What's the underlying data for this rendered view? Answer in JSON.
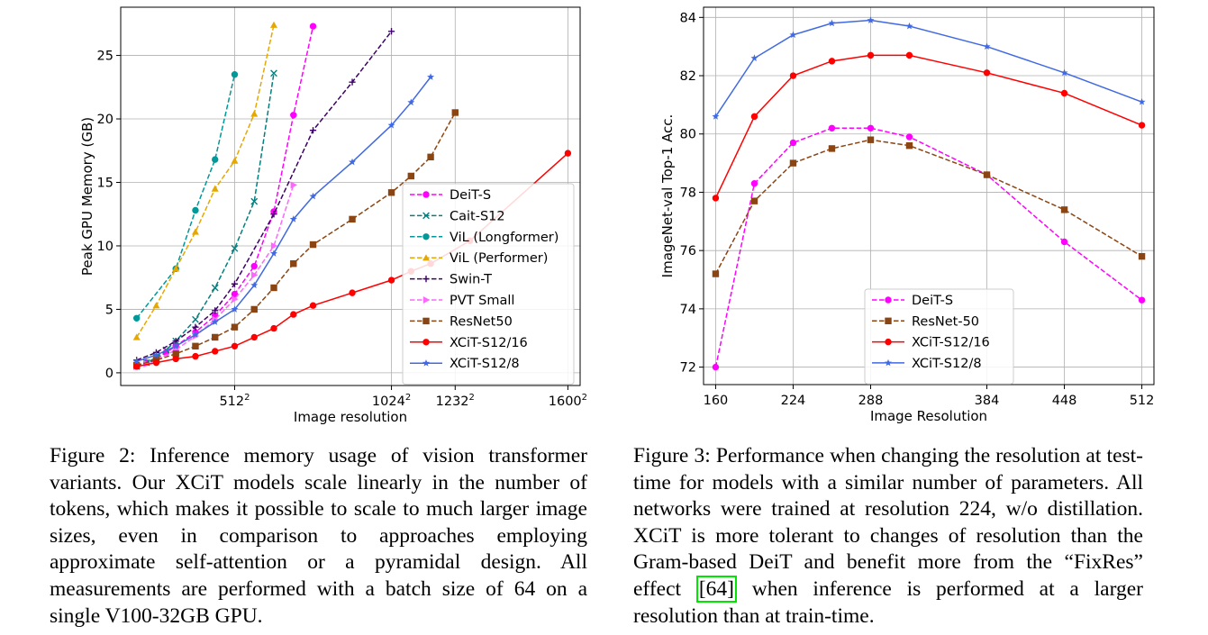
{
  "chart_data": [
    {
      "type": "line",
      "title": "",
      "xlabel": "Image resolution",
      "ylabel": "Peak GPU Memory (GB)",
      "xlim": [
        140,
        1640
      ],
      "ylim": [
        -1,
        28.8
      ],
      "xticks": [
        {
          "value": 512,
          "base": "512",
          "exp": "2"
        },
        {
          "value": 1024,
          "base": "1024",
          "exp": "2"
        },
        {
          "value": 1232,
          "base": "1232",
          "exp": "2"
        },
        {
          "value": 1600,
          "base": "1600",
          "exp": "2"
        }
      ],
      "yticks": [
        0,
        5,
        10,
        15,
        20,
        25
      ],
      "grid": true,
      "legend_position": "lower-right",
      "series": [
        {
          "name": "DeiT-S",
          "color": "#ff00ff",
          "dash": "dashed",
          "marker": "circle",
          "x": [
            192,
            224,
            256,
            288,
            320,
            384,
            448,
            512,
            576,
            640,
            704,
            768
          ],
          "y": [
            0.5,
            0.8,
            1.1,
            1.6,
            2.1,
            3.2,
            4.5,
            6.2,
            8.4,
            12.7,
            20.3,
            27.3
          ]
        },
        {
          "name": "Cait-S12",
          "color": "#008080",
          "dash": "dashed",
          "marker": "x",
          "x": [
            192,
            224,
            256,
            288,
            320,
            384,
            448,
            512,
            576,
            640
          ],
          "y": [
            0.5,
            0.8,
            1.2,
            1.8,
            2.5,
            4.2,
            6.7,
            9.8,
            13.5,
            23.6
          ]
        },
        {
          "name": "ViL (Longformer)",
          "color": "#009999",
          "dash": "dashed",
          "marker": "circle",
          "x": [
            192,
            320,
            384,
            448,
            512
          ],
          "y": [
            4.3,
            8.2,
            12.8,
            16.8,
            23.5
          ]
        },
        {
          "name": "ViL (Performer)",
          "color": "#e6a800",
          "dash": "dashed",
          "marker": "triangle",
          "x": [
            192,
            256,
            320,
            384,
            448,
            512,
            576,
            640
          ],
          "y": [
            2.8,
            5.3,
            8.2,
            11.1,
            14.5,
            16.7,
            20.4,
            27.4
          ]
        },
        {
          "name": "Swin-T",
          "color": "#3d0066",
          "dash": "dashed",
          "marker": "plus",
          "x": [
            192,
            256,
            320,
            384,
            448,
            512,
            640,
            768,
            896,
            1024
          ],
          "y": [
            1.0,
            1.6,
            2.5,
            3.6,
            4.9,
            7.0,
            12.5,
            19.1,
            22.9,
            26.9
          ]
        },
        {
          "name": "PVT Small",
          "color": "#ff66ff",
          "dash": "dashed",
          "marker": "tri-right",
          "x": [
            192,
            224,
            256,
            320,
            384,
            448,
            512,
            576,
            640,
            704
          ],
          "y": [
            0.5,
            0.7,
            1.0,
            1.8,
            2.9,
            4.2,
            5.8,
            7.7,
            10.0,
            14.8
          ]
        },
        {
          "name": "ResNet50",
          "color": "#8b4513",
          "dash": "dashed",
          "marker": "square",
          "x": [
            192,
            256,
            320,
            384,
            448,
            512,
            576,
            640,
            704,
            768,
            896,
            1024,
            1088,
            1152,
            1232
          ],
          "y": [
            0.6,
            1.0,
            1.5,
            2.1,
            2.8,
            3.6,
            5.0,
            6.7,
            8.6,
            10.1,
            12.1,
            14.2,
            15.5,
            17.0,
            20.5
          ]
        },
        {
          "name": "XCiT-S12/16",
          "color": "#ff0000",
          "dash": "solid",
          "marker": "circle",
          "x": [
            192,
            256,
            320,
            384,
            448,
            512,
            576,
            640,
            704,
            768,
            896,
            1024,
            1088,
            1152,
            1280,
            1600
          ],
          "y": [
            0.5,
            0.8,
            1.1,
            1.3,
            1.7,
            2.1,
            2.8,
            3.5,
            4.6,
            5.3,
            6.3,
            7.3,
            8.0,
            8.6,
            10.4,
            17.3
          ]
        },
        {
          "name": "XCiT-S12/8",
          "color": "#4169e1",
          "dash": "solid",
          "marker": "star",
          "x": [
            192,
            256,
            320,
            384,
            448,
            512,
            576,
            640,
            704,
            768,
            896,
            1024,
            1088,
            1152
          ],
          "y": [
            0.9,
            1.4,
            2.1,
            3.0,
            4.0,
            5.0,
            6.9,
            9.4,
            12.1,
            13.9,
            16.6,
            19.5,
            21.3,
            23.3
          ]
        }
      ]
    },
    {
      "type": "line",
      "title": "",
      "xlabel": "Image Resolution",
      "ylabel": "ImageNet-val Top-1 Acc.",
      "xlim": [
        150,
        522
      ],
      "ylim": [
        71.4,
        84.35
      ],
      "xticks": [
        160,
        224,
        288,
        384,
        448,
        512
      ],
      "yticks": [
        72,
        74,
        76,
        78,
        80,
        82,
        84
      ],
      "grid": true,
      "legend_position": "lower-center",
      "series": [
        {
          "name": "DeiT-S",
          "color": "#ff00ff",
          "dash": "dashed",
          "marker": "circle",
          "x": [
            160,
            192,
            224,
            256,
            288,
            320,
            384,
            448,
            512
          ],
          "y": [
            72.0,
            78.3,
            79.7,
            80.2,
            80.2,
            79.9,
            78.6,
            76.3,
            74.3
          ]
        },
        {
          "name": "ResNet-50",
          "color": "#8b4513",
          "dash": "dashed",
          "marker": "square",
          "x": [
            160,
            192,
            224,
            256,
            288,
            320,
            384,
            448,
            512
          ],
          "y": [
            75.2,
            77.7,
            79.0,
            79.5,
            79.8,
            79.6,
            78.6,
            77.4,
            75.8
          ]
        },
        {
          "name": "XCiT-S12/16",
          "color": "#ff0000",
          "dash": "solid",
          "marker": "circle",
          "x": [
            160,
            192,
            224,
            256,
            288,
            320,
            384,
            448,
            512
          ],
          "y": [
            77.8,
            80.6,
            82.0,
            82.5,
            82.7,
            82.7,
            82.1,
            81.4,
            80.3
          ]
        },
        {
          "name": "XCiT-S12/8",
          "color": "#4169e1",
          "dash": "solid",
          "marker": "star",
          "x": [
            160,
            192,
            224,
            256,
            288,
            320,
            384,
            448,
            512
          ],
          "y": [
            80.6,
            82.6,
            83.4,
            83.8,
            83.9,
            83.7,
            83.0,
            82.1,
            81.1
          ]
        }
      ]
    }
  ],
  "captions": {
    "fig2": "Figure 2: Inference memory usage of vision transformer variants. Our XCiT models scale linearly in the number of tokens, which makes it possible to scale to much larger image sizes, even in comparison to approaches employing approximate self-attention or a pyramidal design. All measurements are performed with a batch size of 64 on a single V100-32GB GPU.",
    "fig3_before": "Figure 3: Performance when changing the resolution at test-time for models with a similar number of parame­ters. All networks were trained at resolution 224, w/o distillation. XCiT is more tolerant to changes of resolu­tion than the Gram-based DeiT and benefit more from the “FixRes” effect ",
    "fig3_cite": "[64]",
    "fig3_after": " when inference is performed at a larger resolution than at train-time."
  }
}
